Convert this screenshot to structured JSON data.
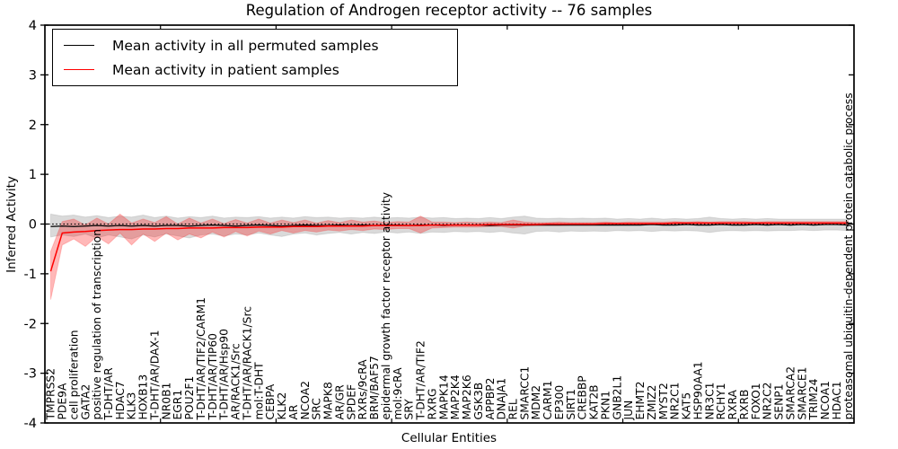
{
  "chart_data": {
    "type": "line",
    "title": "Regulation of Androgen receptor activity -- 76 samples",
    "xlabel": "Cellular Entities",
    "ylabel": "Inferred Activity",
    "ylim": [
      -4,
      4
    ],
    "yticks": [
      4,
      3,
      2,
      1,
      0,
      -1,
      -2,
      -3,
      -4
    ],
    "x_major_every": 10,
    "grid": false,
    "legend_position": "upper-left",
    "zero_line": {
      "y": 0,
      "style": "dotted",
      "color": "#000000"
    },
    "categories": [
      "TMPRSS2",
      "PDE9A",
      "cell proliferation",
      "GATA2",
      "positive regulation of transcription",
      "T-DHT/AR",
      "HDAC7",
      "KLK3",
      "HOXB13",
      "T-DHT/AR/DAX-1",
      "NR0B1",
      "EGR1",
      "POU2F1",
      "T-DHT/AR/TIF2/CARM1",
      "T-DHT/AR/TIP60",
      "T-DHT/AR/Hsp90",
      "AR/RACK1/Src",
      "T-DHT/AR/RACK1/Src",
      "mol:T-DHT",
      "CEBPA",
      "KLK2",
      "AR",
      "NCOA2",
      "SRC",
      "MAPK8",
      "AR/GR",
      "SPDEF",
      "RXRs/9cRA",
      "BRM/BAF57",
      "epidermal growth factor receptor activity",
      "mol:9cRA",
      "SRY",
      "T-DHT/AR/TIF2",
      "RXRG",
      "MAPK14",
      "MAP2K4",
      "MAP2K6",
      "GSK3B",
      "APPBP2",
      "DNAJA1",
      "REL",
      "SMARCC1",
      "MDM2",
      "CARM1",
      "EP300",
      "SIRT1",
      "CREBBP",
      "KAT2B",
      "PKN1",
      "GNB2L1",
      "JUN",
      "EHMT2",
      "ZMIZ2",
      "MYST2",
      "NR2C1",
      "KAT5",
      "HSP90AA1",
      "NR3C1",
      "RCHY1",
      "RXRA",
      "RXRB",
      "FOXO1",
      "NR2C2",
      "SENP1",
      "SMARCA2",
      "SMARCE1",
      "TRIM24",
      "NCOA1",
      "HDAC1",
      "proteasomal ubiquitin-dependent protein catabolic process"
    ],
    "series": [
      {
        "name": "Mean activity in all permuted samples",
        "color": "#000000",
        "line_width": 1.2,
        "band_color": "#555555",
        "band_opacity": 0.22,
        "values": [
          -0.05,
          -0.04,
          -0.05,
          -0.04,
          -0.03,
          -0.04,
          -0.03,
          -0.04,
          -0.03,
          -0.04,
          -0.03,
          -0.03,
          -0.04,
          -0.03,
          -0.02,
          -0.03,
          -0.04,
          -0.03,
          -0.02,
          -0.03,
          -0.04,
          -0.03,
          -0.02,
          -0.03,
          -0.03,
          -0.02,
          -0.03,
          -0.02,
          -0.03,
          -0.02,
          -0.02,
          -0.03,
          -0.02,
          -0.02,
          -0.03,
          -0.02,
          -0.02,
          -0.02,
          -0.03,
          -0.02,
          -0.02,
          -0.02,
          -0.02,
          -0.02,
          -0.02,
          -0.02,
          -0.02,
          -0.02,
          -0.02,
          -0.02,
          -0.02,
          -0.02,
          -0.01,
          -0.02,
          -0.02,
          -0.01,
          -0.02,
          -0.02,
          -0.01,
          -0.02,
          -0.02,
          -0.01,
          -0.02,
          -0.01,
          -0.02,
          -0.01,
          -0.02,
          -0.01,
          -0.01,
          -0.02
        ],
        "band_upper": [
          0.2,
          0.16,
          0.18,
          0.14,
          0.17,
          0.13,
          0.16,
          0.14,
          0.18,
          0.13,
          0.16,
          0.12,
          0.15,
          0.13,
          0.16,
          0.12,
          0.14,
          0.13,
          0.15,
          0.12,
          0.14,
          0.12,
          0.15,
          0.13,
          0.14,
          0.12,
          0.13,
          0.12,
          0.14,
          0.12,
          0.13,
          0.12,
          0.14,
          0.12,
          0.13,
          0.11,
          0.12,
          0.11,
          0.13,
          0.11,
          0.14,
          0.16,
          0.12,
          0.11,
          0.12,
          0.11,
          0.12,
          0.11,
          0.12,
          0.1,
          0.11,
          0.1,
          0.12,
          0.1,
          0.11,
          0.1,
          0.11,
          0.14,
          0.11,
          0.1,
          0.11,
          0.1,
          0.11,
          0.1,
          0.1,
          0.1,
          0.1,
          0.1,
          0.1,
          0.1
        ],
        "band_lower": [
          -0.26,
          -0.22,
          -0.25,
          -0.2,
          -0.28,
          -0.22,
          -0.26,
          -0.3,
          -0.22,
          -0.26,
          -0.2,
          -0.24,
          -0.28,
          -0.22,
          -0.2,
          -0.24,
          -0.2,
          -0.22,
          -0.18,
          -0.22,
          -0.25,
          -0.2,
          -0.18,
          -0.22,
          -0.19,
          -0.17,
          -0.2,
          -0.17,
          -0.19,
          -0.16,
          -0.18,
          -0.16,
          -0.19,
          -0.16,
          -0.17,
          -0.15,
          -0.16,
          -0.15,
          -0.17,
          -0.15,
          -0.18,
          -0.2,
          -0.15,
          -0.14,
          -0.16,
          -0.14,
          -0.15,
          -0.14,
          -0.15,
          -0.13,
          -0.14,
          -0.13,
          -0.15,
          -0.13,
          -0.14,
          -0.13,
          -0.14,
          -0.17,
          -0.14,
          -0.13,
          -0.14,
          -0.13,
          -0.14,
          -0.13,
          -0.13,
          -0.12,
          -0.13,
          -0.12,
          -0.12,
          -0.13
        ]
      },
      {
        "name": "Mean activity in patient samples",
        "color": "#ff0000",
        "line_width": 1.5,
        "band_color": "#ff0000",
        "band_opacity": 0.28,
        "values": [
          -0.95,
          -0.18,
          -0.16,
          -0.15,
          -0.13,
          -0.12,
          -0.11,
          -0.11,
          -0.1,
          -0.1,
          -0.09,
          -0.09,
          -0.08,
          -0.08,
          -0.08,
          -0.07,
          -0.07,
          -0.07,
          -0.06,
          -0.06,
          -0.06,
          -0.05,
          -0.05,
          -0.05,
          -0.04,
          -0.04,
          -0.04,
          -0.04,
          -0.03,
          -0.03,
          -0.03,
          -0.03,
          -0.03,
          -0.02,
          -0.02,
          -0.02,
          -0.02,
          -0.02,
          -0.01,
          -0.01,
          -0.01,
          -0.01,
          -0.01,
          0.0,
          0.0,
          0.0,
          0.0,
          0.0,
          0.01,
          0.01,
          0.01,
          0.01,
          0.01,
          0.01,
          0.02,
          0.02,
          0.02,
          0.02,
          0.02,
          0.02,
          0.02,
          0.02,
          0.02,
          0.02,
          0.02,
          0.02,
          0.02,
          0.02,
          0.02,
          0.02
        ],
        "band_upper": [
          -0.55,
          0.05,
          0.1,
          -0.02,
          0.12,
          0.0,
          0.2,
          0.02,
          0.1,
          0.03,
          0.15,
          0.0,
          0.12,
          0.02,
          0.1,
          0.01,
          0.09,
          0.02,
          0.1,
          0.02,
          0.08,
          0.03,
          0.08,
          0.02,
          0.07,
          0.03,
          0.08,
          0.04,
          0.06,
          0.03,
          0.05,
          0.04,
          0.16,
          0.04,
          0.04,
          0.03,
          0.04,
          0.03,
          0.04,
          0.03,
          0.08,
          0.04,
          0.03,
          0.03,
          0.04,
          0.03,
          0.03,
          0.03,
          0.04,
          0.03,
          0.04,
          0.04,
          0.04,
          0.04,
          0.05,
          0.04,
          0.05,
          0.04,
          0.05,
          0.05,
          0.05,
          0.04,
          0.05,
          0.05,
          0.05,
          0.05,
          0.05,
          0.05,
          0.05,
          0.05
        ],
        "band_lower": [
          -1.52,
          -0.42,
          -0.3,
          -0.45,
          -0.25,
          -0.4,
          -0.18,
          -0.42,
          -0.2,
          -0.35,
          -0.18,
          -0.32,
          -0.2,
          -0.28,
          -0.16,
          -0.26,
          -0.15,
          -0.24,
          -0.14,
          -0.2,
          -0.13,
          -0.18,
          -0.13,
          -0.16,
          -0.12,
          -0.14,
          -0.11,
          -0.13,
          -0.1,
          -0.11,
          -0.09,
          -0.09,
          -0.18,
          -0.08,
          -0.07,
          -0.06,
          -0.06,
          -0.06,
          -0.05,
          -0.05,
          -0.08,
          -0.04,
          -0.03,
          -0.03,
          -0.03,
          -0.02,
          -0.02,
          -0.02,
          -0.02,
          -0.02,
          -0.01,
          -0.01,
          -0.01,
          -0.01,
          -0.01,
          0.0,
          -0.01,
          0.0,
          0.0,
          0.0,
          -0.01,
          0.0,
          0.0,
          0.0,
          -0.01,
          0.0,
          0.0,
          0.0,
          0.0,
          -0.01
        ]
      }
    ]
  }
}
